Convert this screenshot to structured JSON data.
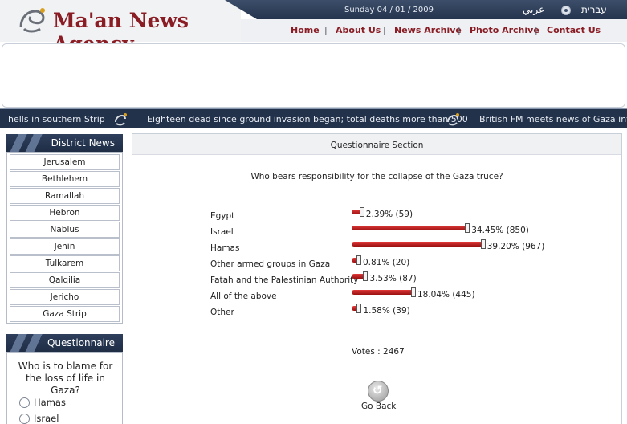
{
  "header": {
    "brand": "Ma'an News Agency",
    "date": "Sunday 04 / 01 / 2009",
    "lang_arabic": "عربي",
    "lang_hebrew": "עברית",
    "nav": [
      "Home",
      "About Us",
      "News Archive",
      "Photo Archive",
      "Contact Us"
    ]
  },
  "ticker": {
    "items": [
      "hells in southern Strip",
      "Eighteen dead since ground invasion began; total deaths more than 500",
      "British FM meets news of Gaza invas"
    ]
  },
  "district_news": {
    "title": "District News",
    "items": [
      "Jerusalem",
      "Bethlehem",
      "Ramallah",
      "Hebron",
      "Nablus",
      "Jenin",
      "Tulkarem",
      "Qalqilia",
      "Jericho",
      "Gaza Strip"
    ]
  },
  "questionnaire_side": {
    "title": "Questionnaire",
    "question": "Who is to blame for the loss of life in Gaza?",
    "options": [
      "Hamas",
      "Israel"
    ]
  },
  "poll": {
    "section_title": "Questionnaire Section",
    "question": "Who bears responsibility for the collapse of the Gaza truce?",
    "answers": [
      {
        "label": "Egypt",
        "percent": 2.39,
        "result": "2.39% (59)"
      },
      {
        "label": "Israel",
        "percent": 34.45,
        "result": "34.45% (850)"
      },
      {
        "label": "Hamas",
        "percent": 39.2,
        "result": "39.20% (967)"
      },
      {
        "label": "Other armed groups in Gaza",
        "percent": 0.81,
        "result": "0.81% (20)"
      },
      {
        "label": "Fatah and the Palestinian Authority",
        "percent": 3.53,
        "result": "3.53% (87)"
      },
      {
        "label": "All of the above",
        "percent": 18.04,
        "result": "18.04% (445)"
      },
      {
        "label": "Other",
        "percent": 1.58,
        "result": "1.58% (39)"
      }
    ],
    "votes": "Votes : 2467",
    "back_label": "Go Back"
  },
  "colors": {
    "brand_red": "#8a1c24",
    "nav_dark": "#23324b",
    "bar_red": "#c81f1f"
  }
}
